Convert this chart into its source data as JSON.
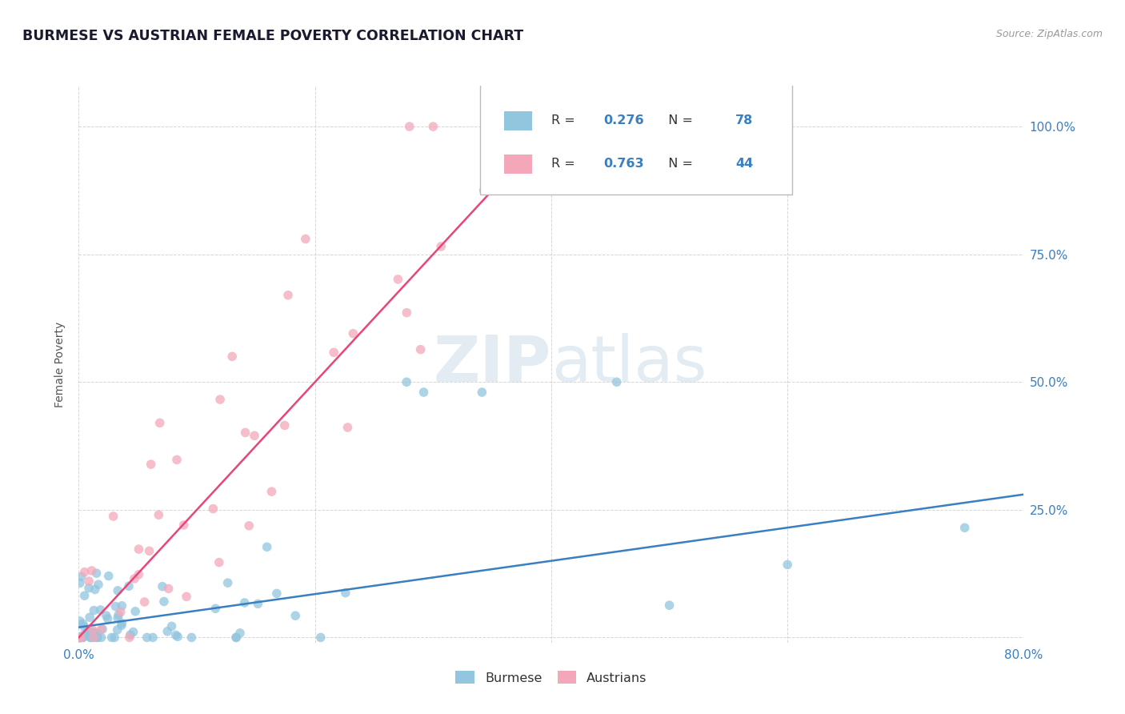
{
  "title": "BURMESE VS AUSTRIAN FEMALE POVERTY CORRELATION CHART",
  "source": "Source: ZipAtlas.com",
  "ylabel": "Female Poverty",
  "xlim": [
    0.0,
    0.8
  ],
  "ylim": [
    -0.01,
    1.08
  ],
  "burmese_color": "#92c5de",
  "austrian_color": "#f4a7b9",
  "burmese_line_color": "#3a7fc1",
  "austrian_line_color": "#e8457a",
  "burmese_R": 0.276,
  "burmese_N": 78,
  "austrian_R": 0.763,
  "austrian_N": 44,
  "watermark_color": "#c8d8e8",
  "watermark_alpha": 0.5,
  "background_color": "#ffffff",
  "grid_color": "#cccccc",
  "title_color": "#1a1a2e",
  "label_color": "#3a7fc1",
  "tick_label_color": "#3a7fc1"
}
